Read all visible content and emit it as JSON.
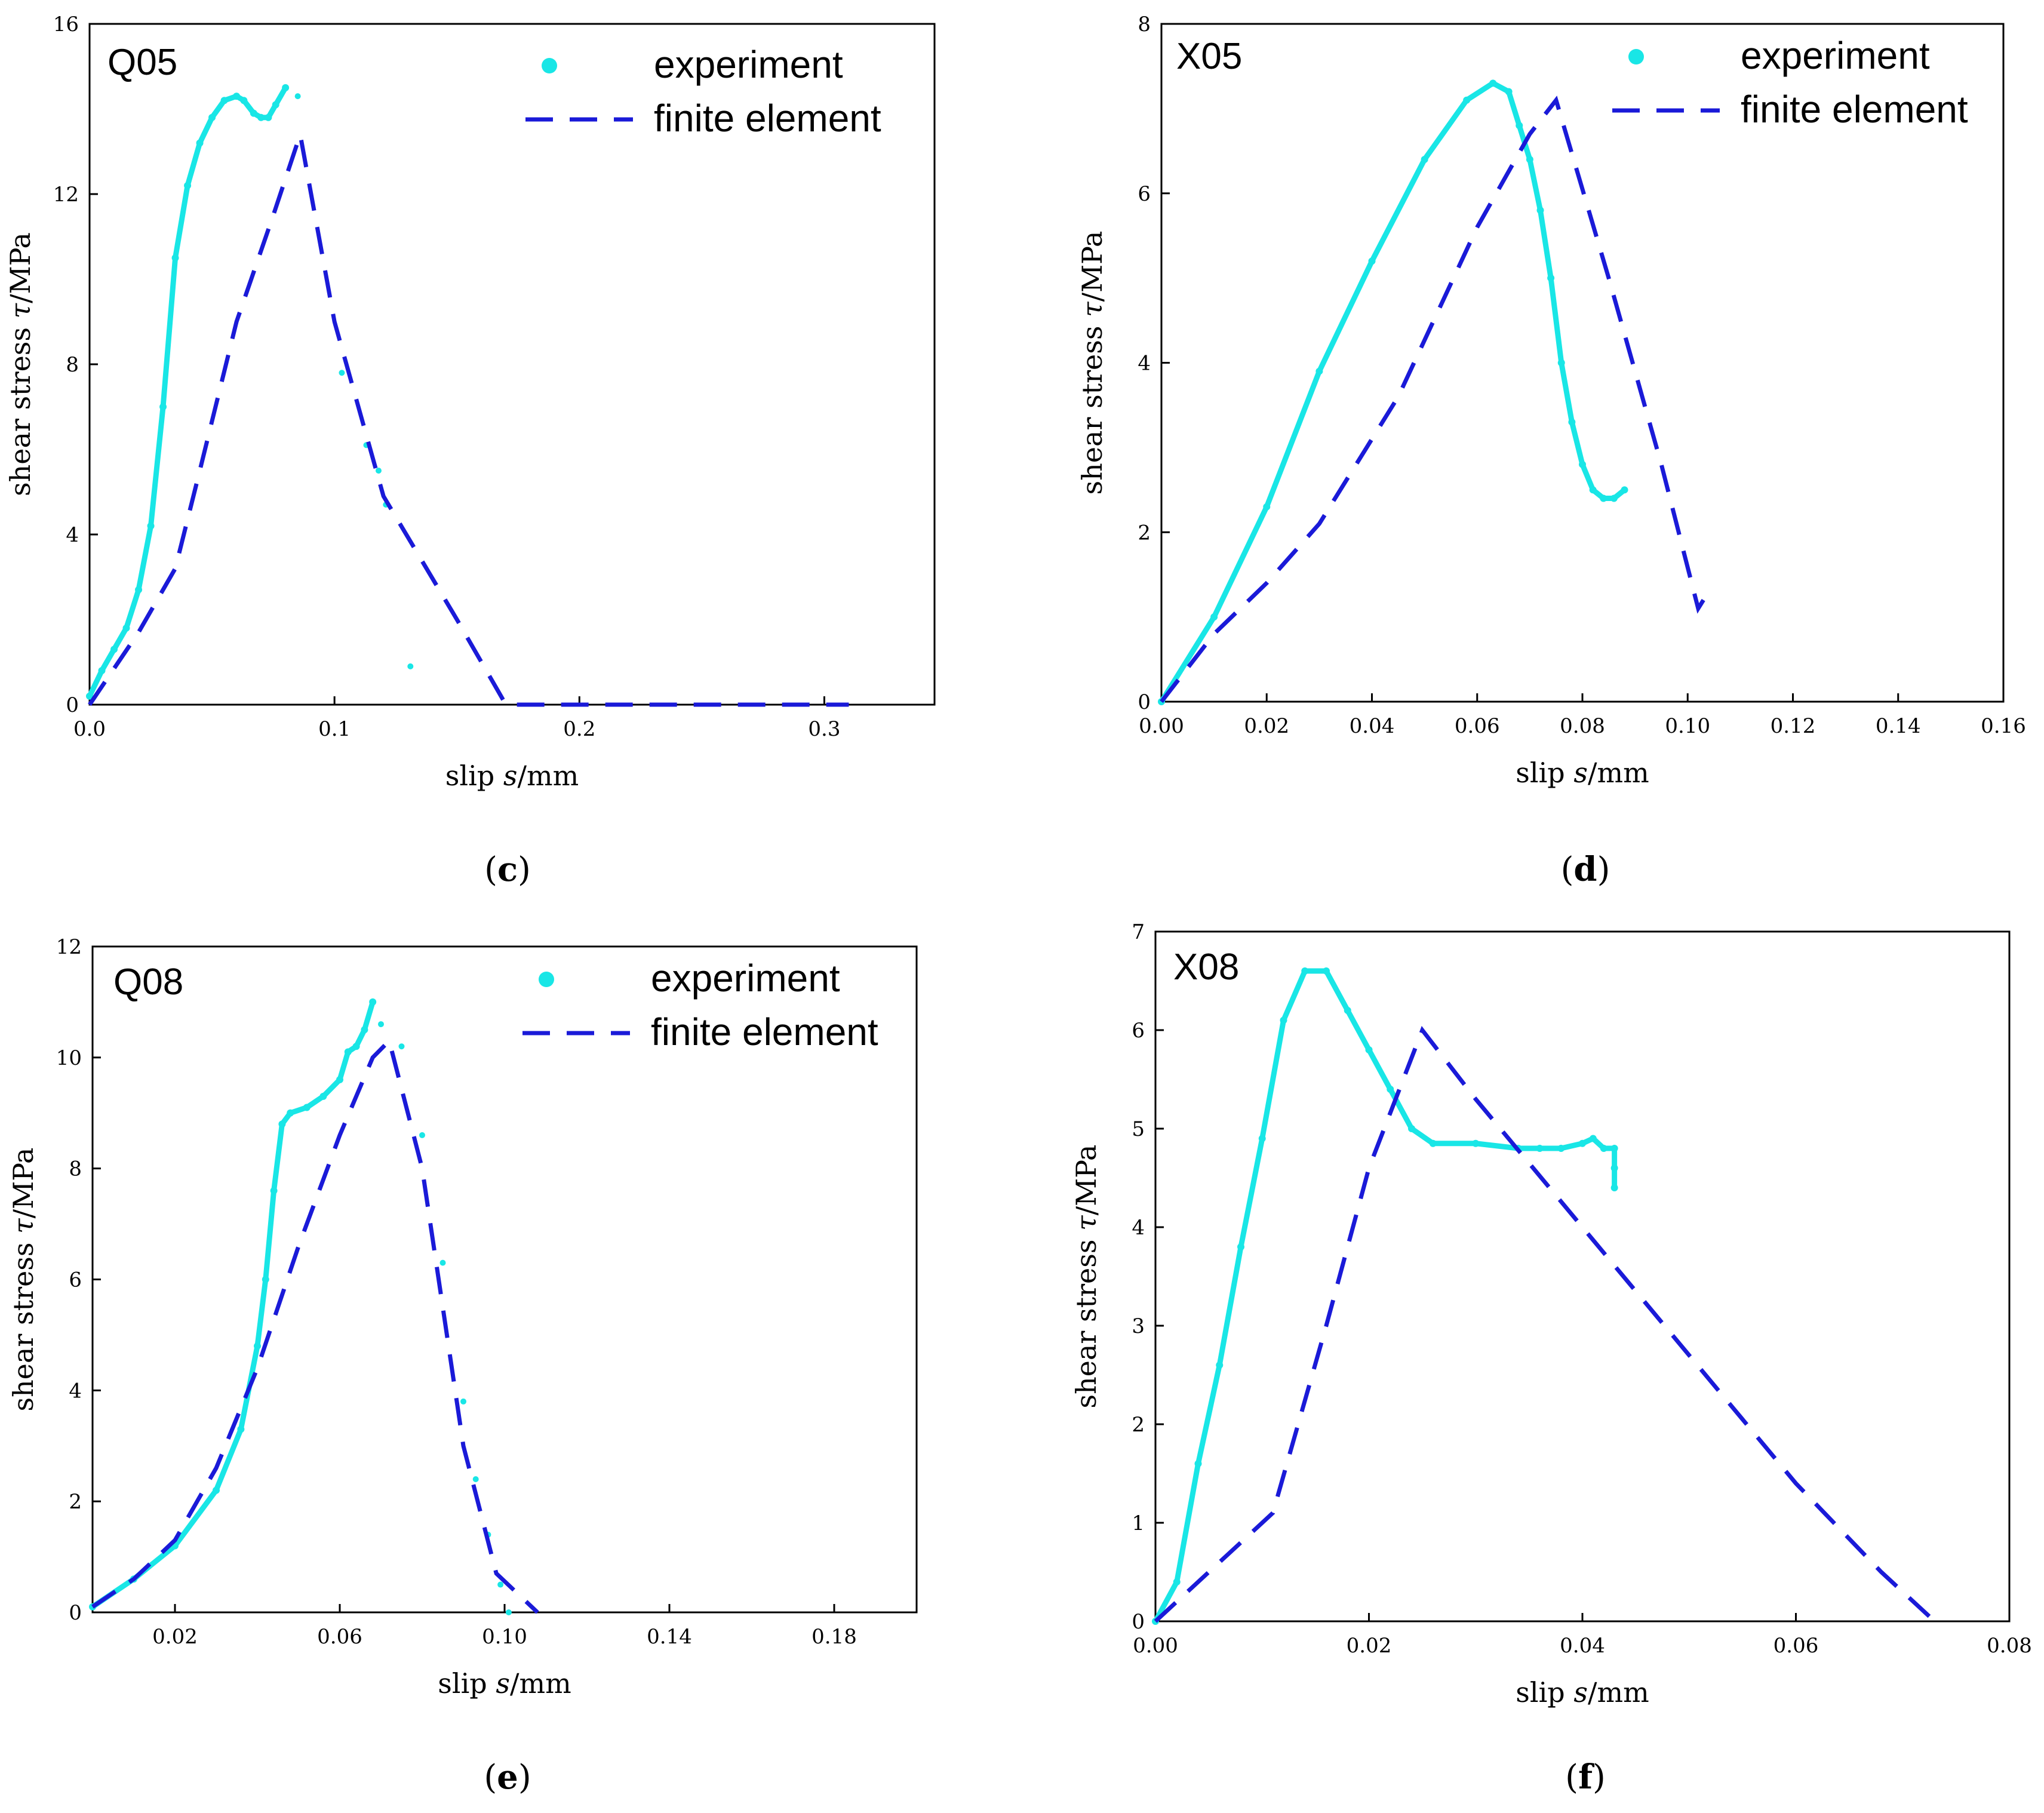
{
  "figure": {
    "legend": {
      "experiment": "experiment",
      "finite_element": "finite element"
    },
    "colors": {
      "experiment": "#19e6e6",
      "finite_element": "#1a1ad8"
    },
    "ylabel_prefix": "shear stress ",
    "ylabel_symbol": "τ",
    "ylabel_unit": "/MPa",
    "xlabel_prefix": "slip ",
    "xlabel_symbol": "s",
    "xlabel_unit": "/mm"
  },
  "chart_data": [
    {
      "id": "c",
      "type": "line",
      "panel_label": "Q05",
      "caption_letter": "c",
      "xlim": [
        0,
        0.345
      ],
      "ylim": [
        0,
        16
      ],
      "xticks": [
        0.0,
        0.1,
        0.2,
        0.3
      ],
      "xtick_labels": [
        "0.0",
        "0.1",
        "0.2",
        "0.3"
      ],
      "yticks": [
        0,
        4,
        8,
        12,
        16
      ],
      "ytick_labels": [
        "0",
        "4",
        "8",
        "12",
        "16"
      ],
      "series": [
        {
          "name": "experiment",
          "style": "markers",
          "x": [
            0.0,
            0.005,
            0.01,
            0.015,
            0.02,
            0.025,
            0.03,
            0.035,
            0.04,
            0.045,
            0.05,
            0.055,
            0.06,
            0.063,
            0.067,
            0.07,
            0.073,
            0.076,
            0.08
          ],
          "y": [
            0.2,
            0.8,
            1.3,
            1.8,
            2.7,
            4.2,
            7.0,
            10.5,
            12.2,
            13.2,
            13.8,
            14.2,
            14.3,
            14.2,
            13.9,
            13.8,
            13.8,
            14.1,
            14.5
          ],
          "scatter_x": [
            0.085,
            0.103,
            0.113,
            0.118,
            0.121,
            0.131
          ],
          "scatter_y": [
            14.3,
            7.8,
            6.1,
            5.5,
            4.7,
            0.9
          ]
        },
        {
          "name": "finite element",
          "style": "dashed",
          "x": [
            0.0,
            0.02,
            0.035,
            0.045,
            0.06,
            0.075,
            0.086,
            0.1,
            0.12,
            0.15,
            0.17,
            0.31
          ],
          "y": [
            0.0,
            1.7,
            3.2,
            5.5,
            9.0,
            11.5,
            13.4,
            9.0,
            4.9,
            2.0,
            0.0,
            0.0
          ]
        }
      ]
    },
    {
      "id": "d",
      "type": "line",
      "panel_label": "X05",
      "caption_letter": "d",
      "xlim": [
        0,
        0.16
      ],
      "ylim": [
        0,
        8
      ],
      "xticks": [
        0.0,
        0.02,
        0.04,
        0.06,
        0.08,
        0.1,
        0.12,
        0.14,
        0.16
      ],
      "xtick_labels": [
        "0.00",
        "0.02",
        "0.04",
        "0.06",
        "0.08",
        "0.10",
        "0.12",
        "0.14",
        "0.16"
      ],
      "yticks": [
        0,
        2,
        4,
        6,
        8
      ],
      "ytick_labels": [
        "0",
        "2",
        "4",
        "6",
        "8"
      ],
      "series": [
        {
          "name": "experiment",
          "style": "markers",
          "x": [
            0.0,
            0.01,
            0.02,
            0.03,
            0.04,
            0.05,
            0.058,
            0.063,
            0.066,
            0.068,
            0.07,
            0.072,
            0.074,
            0.076,
            0.078,
            0.08,
            0.082,
            0.084,
            0.086,
            0.088
          ],
          "y": [
            0.0,
            1.0,
            2.3,
            3.9,
            5.2,
            6.4,
            7.1,
            7.3,
            7.2,
            6.8,
            6.4,
            5.8,
            5.0,
            4.0,
            3.3,
            2.8,
            2.5,
            2.4,
            2.4,
            2.5
          ]
        },
        {
          "name": "finite element",
          "style": "dashed",
          "x": [
            0.0,
            0.01,
            0.02,
            0.03,
            0.045,
            0.06,
            0.07,
            0.075,
            0.085,
            0.095,
            0.102,
            0.103
          ],
          "y": [
            0.0,
            0.8,
            1.4,
            2.1,
            3.6,
            5.6,
            6.7,
            7.1,
            5.0,
            2.8,
            1.1,
            1.2
          ]
        }
      ]
    },
    {
      "id": "e",
      "type": "line",
      "panel_label": "Q08",
      "caption_letter": "e",
      "xlim": [
        0,
        0.2
      ],
      "ylim": [
        0,
        12
      ],
      "xticks": [
        0.02,
        0.06,
        0.1,
        0.14,
        0.18
      ],
      "xtick_labels": [
        "0.02",
        "0.06",
        "0.10",
        "0.14",
        "0.18"
      ],
      "yticks": [
        0,
        2,
        4,
        6,
        8,
        10,
        12
      ],
      "ytick_labels": [
        "0",
        "2",
        "4",
        "6",
        "8",
        "10",
        "12"
      ],
      "series": [
        {
          "name": "experiment",
          "style": "markers",
          "x": [
            0.0,
            0.01,
            0.02,
            0.03,
            0.036,
            0.04,
            0.042,
            0.044,
            0.046,
            0.048,
            0.052,
            0.056,
            0.06,
            0.062,
            0.064,
            0.066,
            0.068
          ],
          "y": [
            0.1,
            0.6,
            1.2,
            2.2,
            3.3,
            4.8,
            6.0,
            7.6,
            8.8,
            9.0,
            9.1,
            9.3,
            9.6,
            10.1,
            10.2,
            10.5,
            11.0
          ],
          "scatter_x": [
            0.07,
            0.075,
            0.08,
            0.085,
            0.09,
            0.093,
            0.096,
            0.099,
            0.101
          ],
          "scatter_y": [
            10.6,
            10.2,
            8.6,
            6.3,
            3.8,
            2.4,
            1.4,
            0.5,
            0.0
          ]
        },
        {
          "name": "finite element",
          "style": "dashed",
          "x": [
            0.0,
            0.01,
            0.02,
            0.03,
            0.04,
            0.05,
            0.06,
            0.068,
            0.072,
            0.08,
            0.09,
            0.098,
            0.108
          ],
          "y": [
            0.1,
            0.6,
            1.3,
            2.6,
            4.4,
            6.6,
            8.6,
            10.0,
            10.3,
            8.0,
            3.0,
            0.7,
            0.0
          ]
        }
      ]
    },
    {
      "id": "f",
      "type": "line",
      "panel_label": "X08",
      "caption_letter": "f",
      "xlim": [
        0,
        0.08
      ],
      "ylim": [
        0,
        7
      ],
      "xticks": [
        0.0,
        0.02,
        0.04,
        0.06,
        0.08
      ],
      "xtick_labels": [
        "0.00",
        "0.02",
        "0.04",
        "0.06",
        "0.08"
      ],
      "yticks": [
        0,
        1,
        2,
        3,
        4,
        5,
        6,
        7
      ],
      "ytick_labels": [
        "0",
        "1",
        "2",
        "3",
        "4",
        "5",
        "6",
        "7"
      ],
      "series": [
        {
          "name": "experiment",
          "style": "markers",
          "x": [
            0.0,
            0.002,
            0.004,
            0.006,
            0.008,
            0.01,
            0.012,
            0.014,
            0.016,
            0.018,
            0.02,
            0.022,
            0.024,
            0.026,
            0.03,
            0.034,
            0.036,
            0.038,
            0.04,
            0.041,
            0.042,
            0.043,
            0.043,
            0.043
          ],
          "y": [
            0.0,
            0.4,
            1.6,
            2.6,
            3.8,
            4.9,
            6.1,
            6.6,
            6.6,
            6.2,
            5.8,
            5.4,
            5.0,
            4.85,
            4.85,
            4.8,
            4.8,
            4.8,
            4.85,
            4.9,
            4.8,
            4.8,
            4.6,
            4.4
          ]
        },
        {
          "name": "finite element",
          "style": "dashed",
          "x": [
            0.0,
            0.005,
            0.011,
            0.016,
            0.02,
            0.025,
            0.03,
            0.04,
            0.05,
            0.06,
            0.068,
            0.073
          ],
          "y": [
            0.0,
            0.5,
            1.1,
            3.0,
            4.6,
            6.0,
            5.3,
            4.0,
            2.7,
            1.4,
            0.5,
            0.0
          ]
        }
      ]
    }
  ]
}
